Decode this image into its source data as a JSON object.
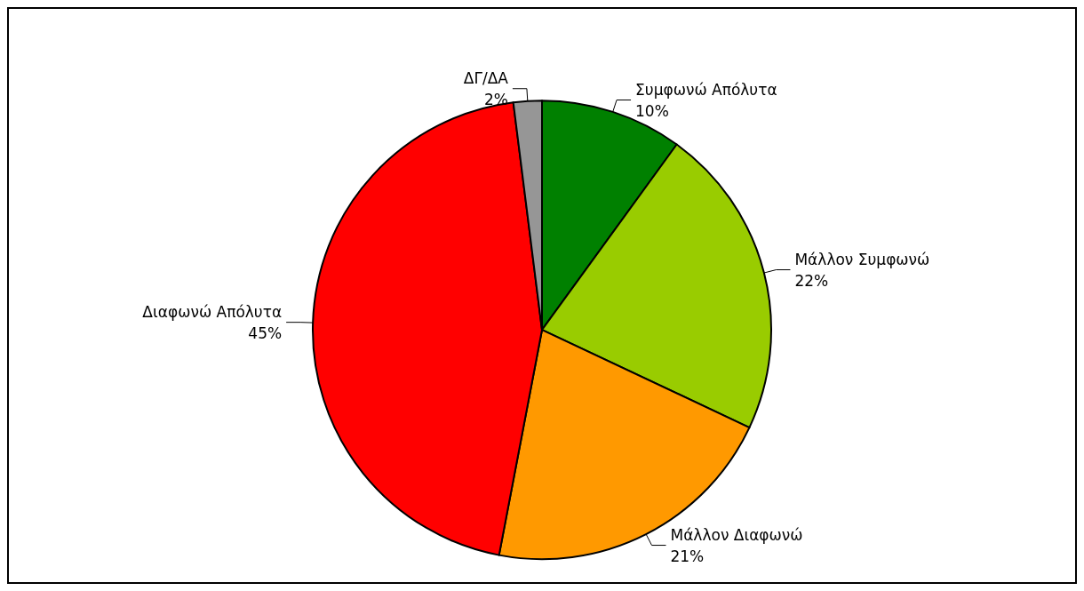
{
  "chart_data": {
    "type": "pie",
    "categories": [
      "Συμφωνώ Απόλυτα",
      "Μάλλον Συμφωνώ",
      "Μάλλον Διαφωνώ",
      "Διαφωνώ Απόλυτα",
      "ΔΓ/ΔΑ"
    ],
    "values": [
      10,
      22,
      21,
      45,
      2
    ],
    "value_labels": [
      "10%",
      "22%",
      "21%",
      "45%",
      "2%"
    ],
    "colors": [
      "#008000",
      "#99cc00",
      "#ff9900",
      "#ff0000",
      "#969696"
    ],
    "legend": false
  }
}
